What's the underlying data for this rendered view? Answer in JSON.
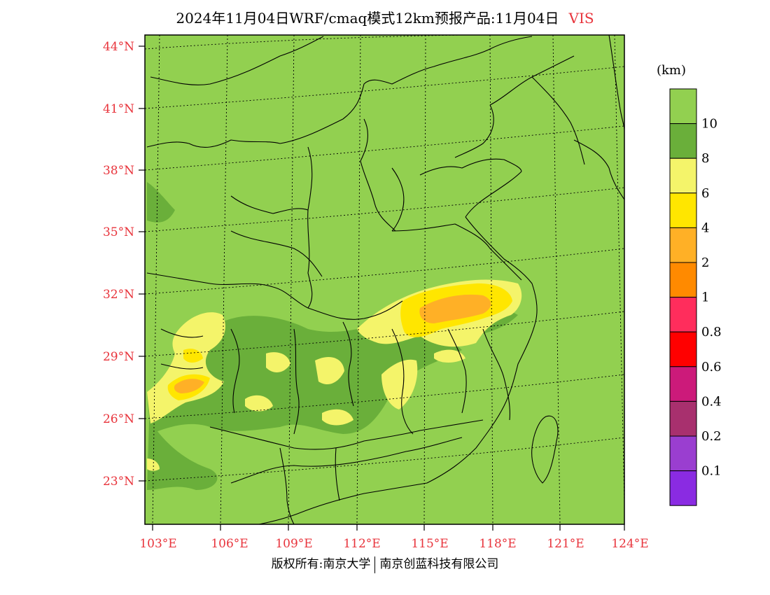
{
  "title": {
    "main": "2024年11月04日WRF/cmaq模式12km预报产品:11月04日",
    "variable": "VIS"
  },
  "colorbar": {
    "unit": "(km)",
    "bins": [
      {
        "color": "#92d050",
        "label": "10"
      },
      {
        "color": "#6aaf3a",
        "label": "8"
      },
      {
        "color": "#f4f46a",
        "label": "6"
      },
      {
        "color": "#ffe600",
        "label": "4"
      },
      {
        "color": "#ffb026",
        "label": "2"
      },
      {
        "color": "#ff8a00",
        "label": "1"
      },
      {
        "color": "#ff2d5c",
        "label": "0.8"
      },
      {
        "color": "#ff0000",
        "label": "0.6"
      },
      {
        "color": "#cc1a7a",
        "label": "0.4"
      },
      {
        "color": "#a8306e",
        "label": "0.2"
      },
      {
        "color": "#9a3ed0",
        "label": "0.1"
      },
      {
        "color": "#8a2be2",
        "label": ""
      }
    ]
  },
  "axes": {
    "lat_labels": [
      "44°N",
      "41°N",
      "38°N",
      "35°N",
      "32°N",
      "29°N",
      "26°N",
      "23°N"
    ],
    "lon_labels": [
      "103°E",
      "106°E",
      "109°E",
      "112°E",
      "115°E",
      "118°E",
      "121°E",
      "124°E"
    ],
    "label_color": "#e8343c"
  },
  "credit": {
    "left": "版权所有:南京大学",
    "right": "南京创蓝科技有限公司"
  }
}
